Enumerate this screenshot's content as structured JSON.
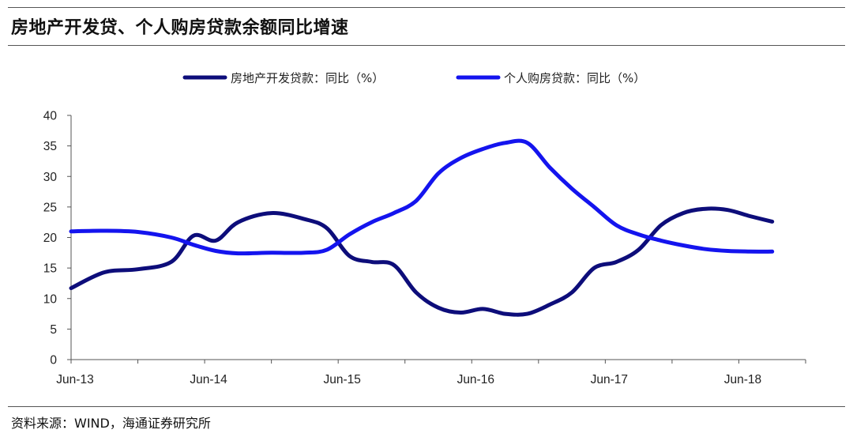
{
  "title": "房地产开发贷、个人购房贷款余额同比增速",
  "source": "资料来源：WIND，海通证券研究所",
  "chart_data": {
    "type": "line",
    "title": "房地产开发贷、个人购房贷款余额同比增速",
    "xlabel": "",
    "ylabel": "",
    "ylim": [
      0,
      40
    ],
    "yticks": [
      0,
      5,
      10,
      15,
      20,
      25,
      30,
      35,
      40
    ],
    "xlim": [
      0,
      66
    ],
    "xticks": [
      {
        "at": 0,
        "label": "Jun-13"
      },
      {
        "at": 12,
        "label": "Jun-14"
      },
      {
        "at": 24,
        "label": "Jun-15"
      },
      {
        "at": 36,
        "label": "Jun-16"
      },
      {
        "at": 48,
        "label": "Jun-17"
      },
      {
        "at": 60,
        "label": "Jun-18"
      }
    ],
    "grid": false,
    "legend_position": "top-center",
    "series": [
      {
        "name": "房地产开发贷款：同比（%）",
        "color": "#0d0d7a",
        "points": [
          [
            0,
            11.7
          ],
          [
            3,
            14.3
          ],
          [
            6,
            14.8
          ],
          [
            9,
            16.0
          ],
          [
            11,
            20.3
          ],
          [
            13,
            19.5
          ],
          [
            15,
            22.5
          ],
          [
            18,
            24.0
          ],
          [
            21,
            23.0
          ],
          [
            23,
            21.5
          ],
          [
            25,
            17.0
          ],
          [
            27,
            16.0
          ],
          [
            29,
            15.5
          ],
          [
            31,
            11.0
          ],
          [
            33,
            8.5
          ],
          [
            35,
            7.7
          ],
          [
            37,
            8.3
          ],
          [
            39,
            7.5
          ],
          [
            41,
            7.5
          ],
          [
            43,
            9.0
          ],
          [
            45,
            11.0
          ],
          [
            47,
            15.0
          ],
          [
            49,
            16.0
          ],
          [
            51,
            18.0
          ],
          [
            53,
            22.0
          ],
          [
            55,
            24.0
          ],
          [
            57,
            24.7
          ],
          [
            59,
            24.5
          ],
          [
            61,
            23.5
          ],
          [
            63,
            22.6
          ]
        ]
      },
      {
        "name": "个人购房贷款：同比（%）",
        "color": "#1414ee",
        "points": [
          [
            0,
            21.0
          ],
          [
            3,
            21.1
          ],
          [
            6,
            20.9
          ],
          [
            9,
            20.0
          ],
          [
            11,
            18.8
          ],
          [
            13,
            17.8
          ],
          [
            15,
            17.4
          ],
          [
            18,
            17.5
          ],
          [
            21,
            17.5
          ],
          [
            23,
            18.0
          ],
          [
            25,
            20.5
          ],
          [
            27,
            22.5
          ],
          [
            29,
            24.0
          ],
          [
            31,
            26.0
          ],
          [
            33,
            30.5
          ],
          [
            35,
            33.0
          ],
          [
            37,
            34.5
          ],
          [
            39,
            35.5
          ],
          [
            41,
            35.5
          ],
          [
            43,
            31.5
          ],
          [
            45,
            28.0
          ],
          [
            47,
            25.0
          ],
          [
            49,
            22.0
          ],
          [
            51,
            20.5
          ],
          [
            53,
            19.5
          ],
          [
            55,
            18.7
          ],
          [
            57,
            18.1
          ],
          [
            59,
            17.8
          ],
          [
            61,
            17.7
          ],
          [
            63,
            17.7
          ]
        ]
      }
    ]
  }
}
